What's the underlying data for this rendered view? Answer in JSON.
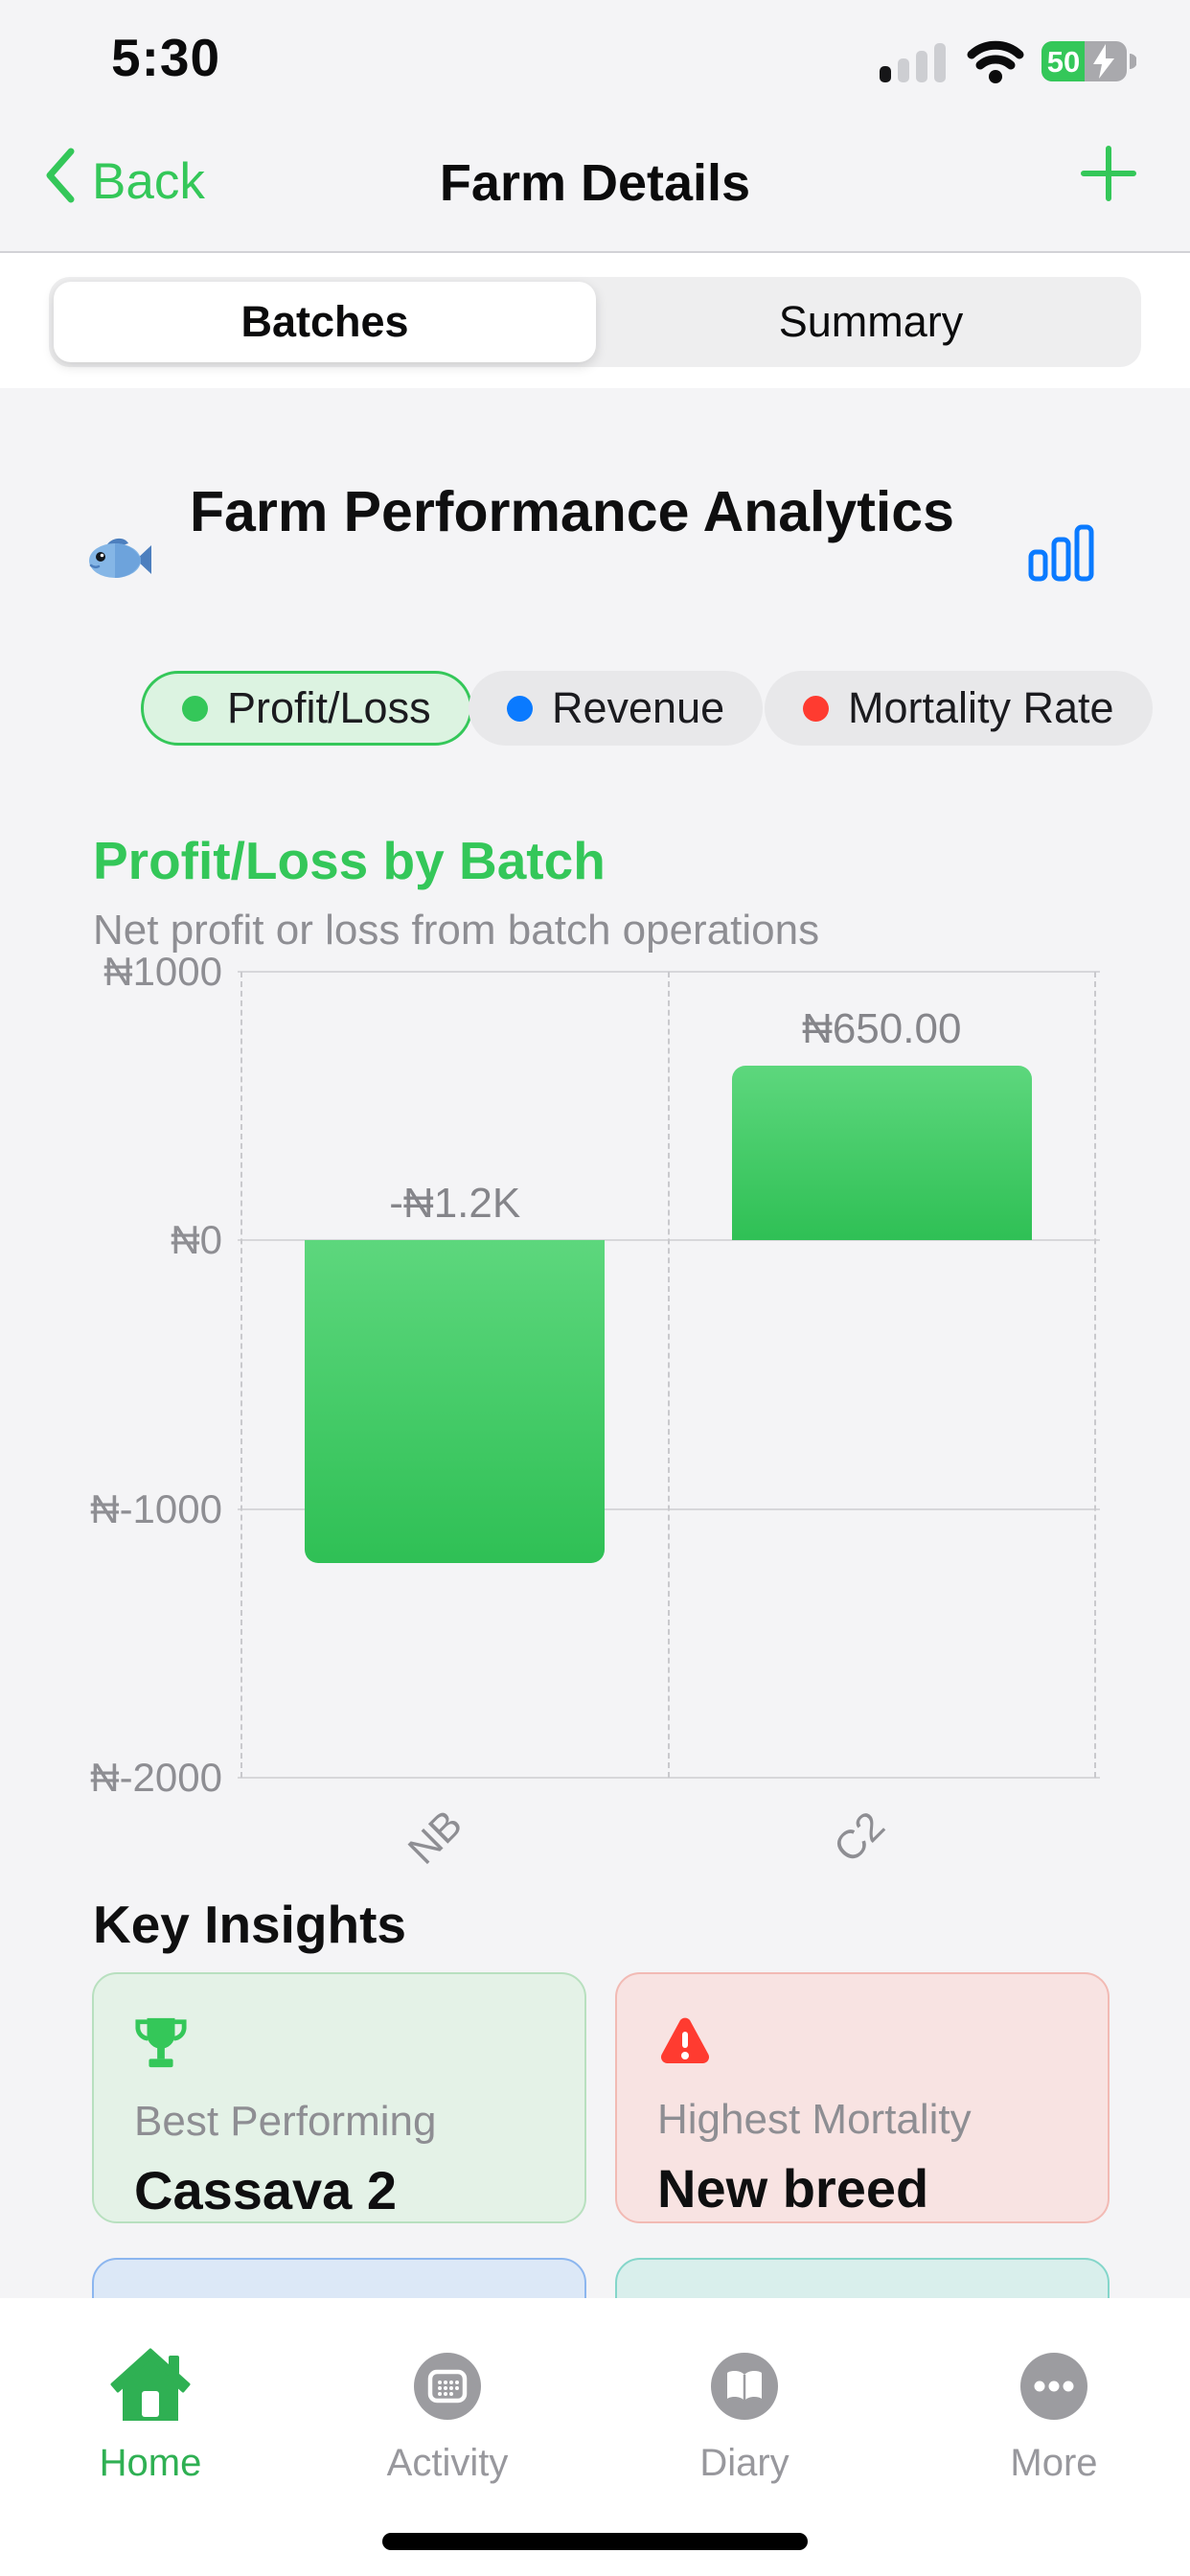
{
  "status_bar": {
    "time": "5:30",
    "battery_percent": "50",
    "charging": true,
    "icons": [
      "cellular-signal-icon",
      "wifi-icon",
      "battery-icon"
    ]
  },
  "nav": {
    "back_label": "Back",
    "title": "Farm Details",
    "add_icon": "plus-icon"
  },
  "segmented_control": {
    "items": [
      {
        "label": "Batches",
        "selected": true
      },
      {
        "label": "Summary",
        "selected": false
      }
    ]
  },
  "analytics_header": {
    "icon": "fish-icon",
    "title": "Farm Performance Analytics",
    "right_icon": "bar-chart-icon"
  },
  "filters": [
    {
      "label": "Profit/Loss",
      "dot_color": "#34c759",
      "selected": true
    },
    {
      "label": "Revenue",
      "dot_color": "#0a7aff",
      "selected": false
    },
    {
      "label": "Mortality Rate",
      "dot_color": "#ff3b30",
      "selected": false
    }
  ],
  "chart_data": {
    "type": "bar",
    "title": "Profit/Loss by Batch",
    "subtitle": "Net profit or loss from batch operations",
    "categories": [
      "NB",
      "C2"
    ],
    "values": [
      -1200,
      650
    ],
    "value_labels": [
      "-₦1.2K",
      "₦650.00"
    ],
    "ylim": [
      -2000,
      1000
    ],
    "yticks": [
      1000,
      0,
      -1000,
      -2000
    ],
    "ytick_labels": [
      "₦1000",
      "₦0",
      "₦-1000",
      "₦-2000"
    ],
    "grid": true,
    "bar_color_top": "#5dd77d",
    "bar_color_bottom": "#2fc055"
  },
  "insights": {
    "heading": "Key Insights",
    "cards": [
      {
        "icon": "trophy-icon",
        "label": "Best Performing",
        "value": "Cassava 2",
        "theme": "green"
      },
      {
        "icon": "warning-icon",
        "label": "Highest Mortality",
        "value": "New breed",
        "theme": "red"
      },
      {
        "label": "",
        "value": "",
        "theme": "blue"
      },
      {
        "label": "",
        "value": "",
        "theme": "teal"
      }
    ]
  },
  "tab_bar": {
    "items": [
      {
        "label": "Home",
        "icon": "home-icon",
        "active": true
      },
      {
        "label": "Activity",
        "icon": "calendar-grid-icon",
        "active": false
      },
      {
        "label": "Diary",
        "icon": "book-icon",
        "active": false
      },
      {
        "label": "More",
        "icon": "ellipsis-icon",
        "active": false
      }
    ]
  },
  "colors": {
    "accent_green": "#34c759",
    "accent_blue": "#0a7aff",
    "accent_red": "#ff3b30",
    "background": "#f4f4f6",
    "axis_text": "#8e8e93"
  }
}
